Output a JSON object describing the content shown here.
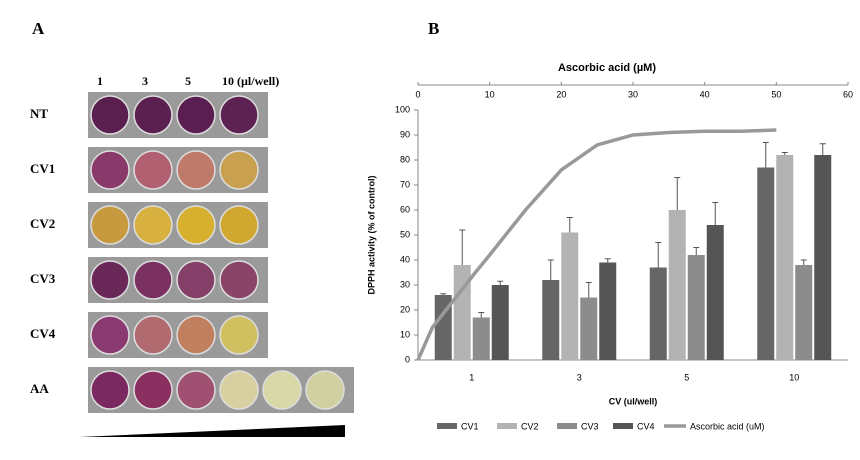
{
  "panel_a": {
    "label": "A",
    "columns": [
      "1",
      "3",
      "5",
      "10 (µl/well)"
    ],
    "rows": [
      "NT",
      "CV1",
      "CV2",
      "CV3",
      "CV4",
      "AA"
    ]
  },
  "chart_data": {
    "type": "bar",
    "panel_label": "B",
    "x_label": "CV (ul/well)",
    "y_label": "DPPH activity (% of control)",
    "x2_label": "Ascorbic acid (µM)",
    "categories": [
      "1",
      "3",
      "5",
      "10"
    ],
    "ylim": [
      0,
      100
    ],
    "yticks": [
      0,
      10,
      20,
      30,
      40,
      50,
      60,
      70,
      80,
      90,
      100
    ],
    "x2lim": [
      0,
      60
    ],
    "x2ticks": [
      0,
      10,
      20,
      30,
      40,
      50,
      60
    ],
    "series": [
      {
        "name": "CV1",
        "color": "#666666",
        "values": [
          26,
          32,
          37,
          77
        ],
        "errors": [
          0.5,
          8,
          10,
          10
        ]
      },
      {
        "name": "CV2",
        "color": "#b3b3b3",
        "values": [
          38,
          51,
          60,
          82
        ],
        "errors": [
          14,
          6,
          13,
          1
        ]
      },
      {
        "name": "CV3",
        "color": "#8c8c8c",
        "values": [
          17,
          25,
          42,
          38
        ],
        "errors": [
          2,
          6,
          3,
          2
        ]
      },
      {
        "name": "CV4",
        "color": "#555555",
        "values": [
          30,
          39,
          54,
          82
        ],
        "errors": [
          1.5,
          1.5,
          9,
          4.5
        ]
      },
      {
        "name": "Ascorbic acid (uM)",
        "type": "line",
        "axis": "x2",
        "color": "#999999",
        "x": [
          0,
          2,
          5,
          8,
          10,
          15,
          20,
          25,
          30,
          35,
          40,
          45,
          50
        ],
        "values": [
          0,
          13,
          24,
          35,
          42,
          60,
          76,
          86,
          90,
          91,
          91.5,
          91.5,
          92
        ]
      }
    ]
  }
}
